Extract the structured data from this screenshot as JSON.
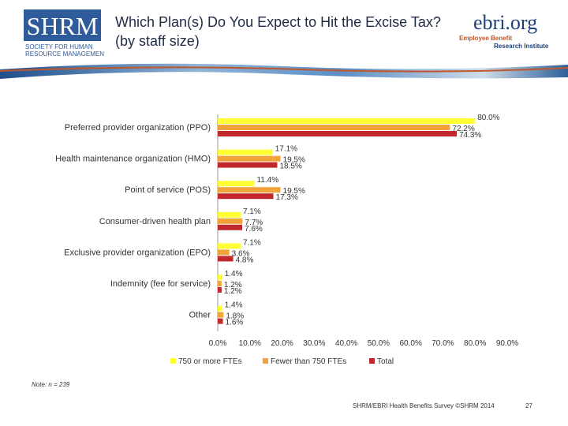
{
  "header": {
    "title": "Which Plan(s) Do You Expect to Hit the Excise Tax? (by staff size)",
    "shrm_logo_text": [
      "SHRM",
      "SOCIETY FOR HUMAN",
      "RESOURCE MANAGEMENT"
    ],
    "ebri_logo_name": "ebri.org",
    "ebri_logo_sub1": "Employee Benefit",
    "ebri_logo_sub2": "Research Institute"
  },
  "chart_data": {
    "type": "bar",
    "orientation": "horizontal",
    "categories": [
      "Preferred provider organization (PPO)",
      "Health maintenance organization (HMO)",
      "Point of service (POS)",
      "Consumer-driven health plan",
      "Exclusive provider organization (EPO)",
      "Indemnity (fee for service)",
      "Other"
    ],
    "series": [
      {
        "name": "750 or more FTEs",
        "color": "#ffff33",
        "values": [
          80.0,
          17.1,
          11.4,
          7.1,
          7.1,
          1.4,
          1.4
        ],
        "labels": [
          "80.0%",
          "17.1%",
          "11.4%",
          "7.1%",
          "7.1%",
          "1.4%",
          "1.4%"
        ]
      },
      {
        "name": "Fewer than 750 FTEs",
        "color": "#f2a33a",
        "values": [
          72.2,
          19.5,
          19.5,
          7.7,
          3.6,
          1.2,
          1.8
        ],
        "labels": [
          "72.2%",
          "19.5%",
          "19.5%",
          "7.7%",
          "3.6%",
          "1.2%",
          "1.8%"
        ]
      },
      {
        "name": "Total",
        "color": "#c0282d",
        "values": [
          74.3,
          18.5,
          17.3,
          7.6,
          4.8,
          1.2,
          1.6
        ],
        "labels": [
          "74.3%",
          "18.5%",
          "17.3%",
          "7.6%",
          "4.8%",
          "1.2%",
          "1.6%"
        ]
      }
    ],
    "xlim": [
      0,
      90
    ],
    "xticks": [
      0,
      10,
      20,
      30,
      40,
      50,
      60,
      70,
      80,
      90
    ],
    "xtick_labels": [
      "0.0%",
      "10.0%",
      "20.0%",
      "30.0%",
      "40.0%",
      "50.0%",
      "60.0%",
      "70.0%",
      "80.0%",
      "90.0%"
    ],
    "legend_position": "bottom",
    "grid": false
  },
  "note": "Note: n = 239",
  "footer": "SHRM/EBRI Health Benefits Survey ©SHRM 2014",
  "page_number": "27"
}
